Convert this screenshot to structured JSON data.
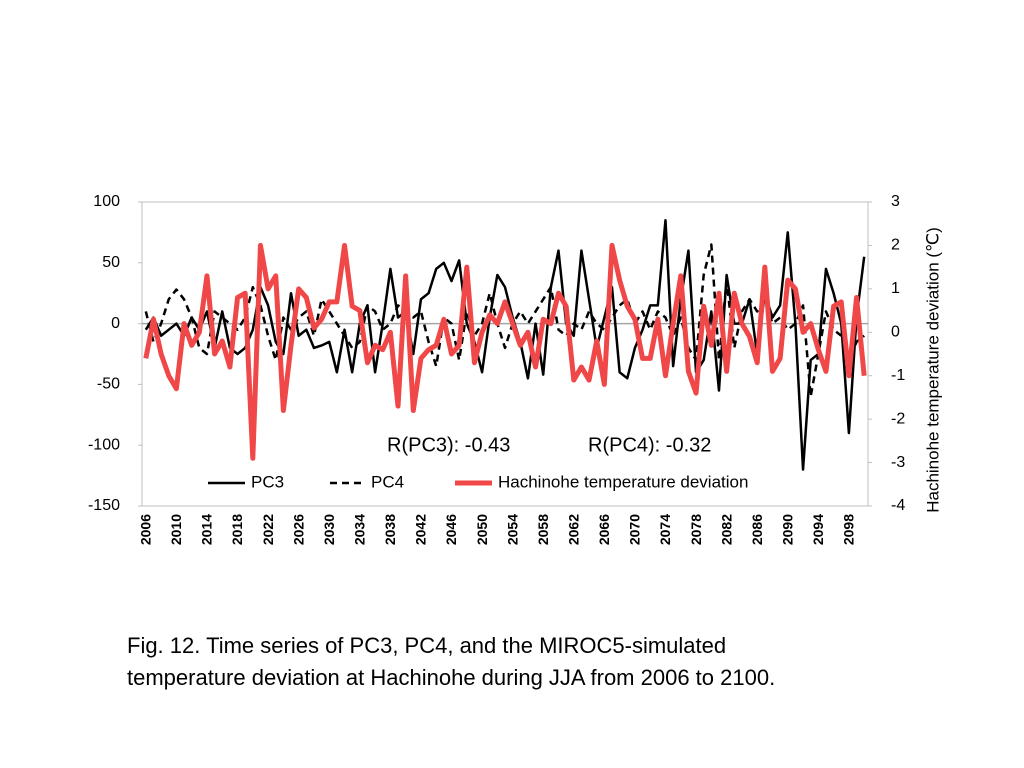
{
  "chart_data": {
    "type": "line",
    "categories": [
      "2006",
      null,
      null,
      null,
      "2010",
      null,
      null,
      null,
      "2014",
      null,
      null,
      null,
      "2018",
      null,
      null,
      null,
      "2022",
      null,
      null,
      null,
      "2026",
      null,
      null,
      null,
      "2030",
      null,
      null,
      null,
      "2034",
      null,
      null,
      null,
      "2038",
      null,
      null,
      null,
      "2042",
      null,
      null,
      null,
      "2046",
      null,
      null,
      null,
      "2050",
      null,
      null,
      null,
      "2054",
      null,
      null,
      null,
      "2058",
      null,
      null,
      null,
      "2062",
      null,
      null,
      null,
      "2066",
      null,
      null,
      null,
      "2070",
      null,
      null,
      null,
      "2074",
      null,
      null,
      null,
      "2078",
      null,
      null,
      null,
      "2082",
      null,
      null,
      null,
      "2086",
      null,
      null,
      null,
      "2090",
      null,
      null,
      null,
      "2094",
      null,
      null,
      null,
      "2098",
      null,
      null
    ],
    "series": [
      {
        "name": "PC3",
        "color": "#000000",
        "dashed": false,
        "width": 2.5,
        "values": [
          -5,
          5,
          -10,
          -5,
          0,
          -10,
          5,
          -5,
          10,
          -20,
          10,
          -20,
          -25,
          -20,
          -5,
          30,
          15,
          -15,
          -25,
          25,
          -10,
          -5,
          -20,
          -18,
          -15,
          -40,
          -5,
          -40,
          0,
          15,
          -40,
          0,
          45,
          5,
          10,
          -25,
          20,
          25,
          45,
          50,
          35,
          52,
          0,
          -15,
          -40,
          5,
          40,
          30,
          5,
          -15,
          -45,
          0,
          -42,
          30,
          60,
          0,
          -10,
          60,
          20,
          -20,
          5,
          30,
          -40,
          -45,
          -20,
          -5,
          15,
          15,
          85,
          -35,
          20,
          60,
          -40,
          -30,
          10,
          -55,
          40,
          0,
          0,
          20,
          -25,
          25,
          5,
          15,
          75,
          0,
          -120,
          -30,
          -25,
          45,
          25,
          0,
          -90,
          5,
          55
        ]
      },
      {
        "name": "PC4",
        "color": "#000000",
        "dashed": true,
        "width": 2.5,
        "values": [
          10,
          -15,
          0,
          20,
          28,
          20,
          5,
          -20,
          -25,
          10,
          5,
          0,
          -5,
          5,
          30,
          15,
          -10,
          -30,
          5,
          -5,
          5,
          10,
          -10,
          20,
          10,
          0,
          -10,
          -20,
          -15,
          15,
          10,
          -5,
          0,
          15,
          10,
          5,
          10,
          -15,
          -35,
          5,
          0,
          -30,
          10,
          -10,
          0,
          25,
          0,
          -20,
          0,
          10,
          0,
          10,
          20,
          30,
          -5,
          -10,
          0,
          -5,
          10,
          0,
          -5,
          5,
          15,
          20,
          0,
          10,
          -5,
          10,
          5,
          -10,
          5,
          -20,
          -30,
          40,
          65,
          -30,
          35,
          -20,
          10,
          20,
          10,
          20,
          0,
          5,
          -5,
          0,
          15,
          -60,
          -25,
          10,
          -5,
          -10,
          -30,
          -15,
          -10
        ]
      },
      {
        "name": "Hachinohe temperature deviation",
        "color": "#f04848",
        "dashed": false,
        "width": 5,
        "axis": "y2",
        "values": [
          -0.6,
          0.3,
          -0.5,
          -1.0,
          -1.3,
          0.2,
          -0.3,
          0.0,
          1.3,
          -0.5,
          -0.2,
          -0.8,
          0.8,
          0.9,
          -2.9,
          2.0,
          1.0,
          1.3,
          -1.8,
          -0.3,
          1.0,
          0.8,
          0.1,
          0.3,
          0.7,
          0.7,
          2.0,
          0.6,
          0.5,
          -0.7,
          -0.3,
          -0.4,
          0.0,
          -1.7,
          1.3,
          -1.8,
          -0.6,
          -0.4,
          -0.3,
          0.3,
          -0.5,
          -0.3,
          1.5,
          -0.7,
          0.0,
          0.4,
          0.2,
          0.7,
          0.2,
          -0.3,
          0.0,
          -0.8,
          0.3,
          0.2,
          0.9,
          0.6,
          -1.1,
          -0.8,
          -1.1,
          -0.2,
          -1.2,
          2.0,
          1.2,
          0.6,
          0.3,
          -0.6,
          -0.6,
          0.3,
          -1.0,
          0.2,
          1.3,
          -0.9,
          -1.4,
          0.6,
          -0.3,
          0.9,
          -0.9,
          0.9,
          0.2,
          -0.1,
          -0.7,
          1.5,
          -0.9,
          -0.6,
          1.2,
          1.0,
          0.0,
          0.2,
          -0.4,
          -0.9,
          0.6,
          0.7,
          -1.0,
          0.8,
          -1.0
        ]
      }
    ],
    "ylim": [
      -150,
      100
    ],
    "yticks": [
      -150,
      -100,
      -50,
      0,
      50,
      100
    ],
    "y2lim": [
      -4,
      3
    ],
    "y2ticks": [
      -4,
      -3,
      -2,
      -1,
      0,
      1,
      2,
      3
    ],
    "y2label": "Hachinohe temperature deviation (℃)",
    "annotations": [
      "R(PC3): -0.43",
      "R(PC4): -0.32"
    ],
    "legend": "bottom-inside",
    "caption": [
      "Fig. 12. Time series of PC3, PC4, and the MIROC5-simulated",
      "temperature deviation at Hachinohe during JJA from 2006 to 2100."
    ]
  }
}
